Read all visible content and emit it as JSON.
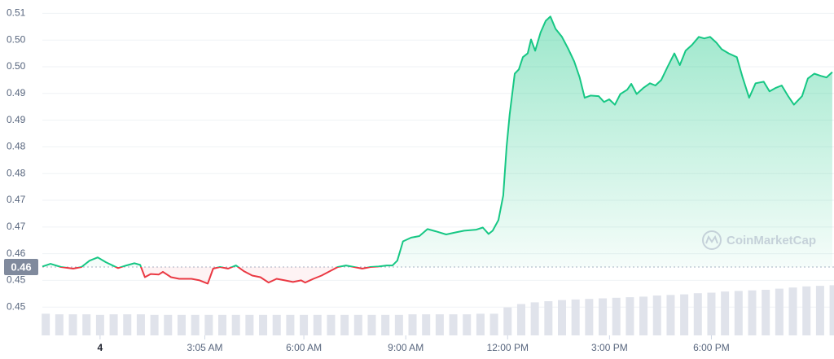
{
  "chart_data": {
    "type": "line",
    "x": [
      -1.7,
      -1.46,
      -1.15,
      -0.79,
      -0.55,
      -0.31,
      -0.07,
      0.17,
      0.53,
      0.77,
      1.01,
      1.18,
      1.32,
      1.49,
      1.73,
      1.85,
      2.09,
      2.33,
      2.69,
      2.93,
      3.17,
      3.33,
      3.53,
      3.77,
      4.0,
      4.24,
      4.48,
      4.72,
      4.96,
      5.2,
      5.44,
      5.68,
      5.92,
      6.04,
      6.28,
      6.52,
      6.76,
      7.0,
      7.24,
      7.48,
      7.72,
      7.96,
      8.2,
      8.44,
      8.61,
      8.75,
      8.92,
      9.16,
      9.4,
      9.64,
      9.88,
      10.19,
      10.48,
      10.72,
      11.08,
      11.27,
      11.44,
      11.56,
      11.73,
      11.87,
      11.97,
      12.06,
      12.21,
      12.33,
      12.45,
      12.59,
      12.69,
      12.81,
      12.97,
      13.12,
      13.26,
      13.41,
      13.6,
      13.79,
      13.96,
      14.12,
      14.27,
      14.44,
      14.68,
      14.84,
      14.99,
      15.16,
      15.32,
      15.52,
      15.64,
      15.8,
      15.99,
      16.19,
      16.35,
      16.52,
      16.71,
      16.91,
      17.07,
      17.24,
      17.43,
      17.63,
      17.79,
      17.96,
      18.15,
      18.3,
      18.51,
      18.75,
      18.92,
      19.11,
      19.3,
      19.54,
      19.71,
      19.88,
      20.07,
      20.26,
      20.43,
      20.67,
      20.84,
      21.03,
      21.22,
      21.39,
      21.56
    ],
    "series": [
      {
        "up_color": "#16c784",
        "down_color": "#ea3943",
        "values": [
          0.4576,
          0.4581,
          0.4575,
          0.4572,
          0.4575,
          0.4587,
          0.4593,
          0.4584,
          0.4573,
          0.4578,
          0.4582,
          0.4579,
          0.4556,
          0.4562,
          0.4561,
          0.4566,
          0.4556,
          0.4553,
          0.4553,
          0.455,
          0.4544,
          0.4572,
          0.4575,
          0.4572,
          0.4578,
          0.4567,
          0.4559,
          0.4556,
          0.4546,
          0.4553,
          0.455,
          0.4547,
          0.455,
          0.4546,
          0.4553,
          0.4559,
          0.4567,
          0.4575,
          0.4578,
          0.4575,
          0.4572,
          0.4575,
          0.4576,
          0.4578,
          0.4578,
          0.4587,
          0.4623,
          0.463,
          0.4633,
          0.4646,
          0.4642,
          0.4636,
          0.464,
          0.4643,
          0.4645,
          0.4649,
          0.4637,
          0.4643,
          0.4663,
          0.4709,
          0.48,
          0.4861,
          0.4937,
          0.4945,
          0.4968,
          0.4975,
          0.5001,
          0.498,
          0.5014,
          0.5036,
          0.5044,
          0.5021,
          0.5006,
          0.4983,
          0.496,
          0.493,
          0.4892,
          0.4896,
          0.4895,
          0.4884,
          0.4889,
          0.4879,
          0.4899,
          0.4907,
          0.4918,
          0.4899,
          0.491,
          0.4919,
          0.4915,
          0.4925,
          0.495,
          0.4975,
          0.4953,
          0.498,
          0.4991,
          0.5006,
          0.5003,
          0.5006,
          0.4995,
          0.4983,
          0.4975,
          0.4968,
          0.493,
          0.4892,
          0.4919,
          0.4922,
          0.4904,
          0.491,
          0.4915,
          0.4895,
          0.4879,
          0.4895,
          0.4928,
          0.4937,
          0.4933,
          0.493,
          0.494
        ]
      }
    ],
    "current_price": {
      "value": 0.4575,
      "label": "0.46"
    },
    "xlim": [
      -1.7,
      21.61
    ],
    "xticks": [
      {
        "value": 0,
        "label": "4"
      },
      {
        "value": 3.0833,
        "label": "3:05 AM"
      },
      {
        "value": 6,
        "label": "6:00 AM"
      },
      {
        "value": 9,
        "label": "9:00 AM"
      },
      {
        "value": 12,
        "label": "12:00 PM"
      },
      {
        "value": 15,
        "label": "3:00 PM"
      },
      {
        "value": 18,
        "label": "6:00 PM"
      }
    ],
    "ylim": [
      0.4447,
      0.5075
    ],
    "yticks": [
      {
        "value": 0.45,
        "label": "0.45"
      },
      {
        "value": 0.455,
        "label": "0.45"
      },
      {
        "value": 0.46,
        "label": "0.46"
      },
      {
        "value": 0.465,
        "label": "0.47"
      },
      {
        "value": 0.47,
        "label": "0.47"
      },
      {
        "value": 0.475,
        "label": "0.48"
      },
      {
        "value": 0.48,
        "label": "0.48"
      },
      {
        "value": 0.485,
        "label": "0.49"
      },
      {
        "value": 0.49,
        "label": "0.49"
      },
      {
        "value": 0.495,
        "label": "0.50"
      },
      {
        "value": 0.5,
        "label": "0.50"
      },
      {
        "value": 0.505,
        "label": "0.51"
      }
    ],
    "grid": true,
    "volume": {
      "color": "#e0e3eb",
      "ylim": [
        0,
        100
      ],
      "x": [
        -1.6,
        -1.2,
        -0.8,
        -0.4,
        0,
        0.4,
        0.8,
        1.2,
        1.6,
        2,
        2.4,
        2.8,
        3.2,
        3.6,
        4,
        4.4,
        4.8,
        5.2,
        5.6,
        6,
        6.4,
        6.8,
        7.2,
        7.6,
        8,
        8.4,
        8.8,
        9.2,
        9.6,
        10,
        10.4,
        10.8,
        11.2,
        11.6,
        12,
        12.4,
        12.8,
        13.2,
        13.6,
        14,
        14.4,
        14.8,
        15.2,
        15.6,
        16,
        16.4,
        16.8,
        17.2,
        17.6,
        18,
        18.4,
        18.8,
        19.2,
        19.6,
        20,
        20.4,
        20.8,
        21.2,
        21.6
      ],
      "values": [
        38,
        37,
        37,
        37,
        36,
        37,
        37,
        37,
        36,
        36,
        36,
        36,
        36,
        36,
        36,
        36,
        36,
        36,
        36,
        36,
        36,
        36,
        36,
        36,
        36,
        36,
        36,
        37,
        37,
        37,
        37,
        37,
        38,
        38,
        49,
        55,
        58,
        60,
        62,
        63,
        64,
        65,
        66,
        67,
        68,
        70,
        71,
        72,
        74,
        75,
        77,
        78,
        79,
        80,
        82,
        84,
        86,
        87,
        88
      ]
    },
    "watermark": "CoinMarketCap"
  }
}
